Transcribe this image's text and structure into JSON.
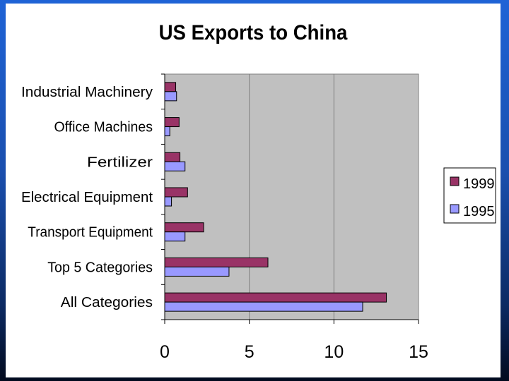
{
  "slide": {
    "title": "US Exports to China"
  },
  "colors": {
    "plot_background": "#c0c0c0",
    "series_1999": "#993366",
    "series_1995": "#9999ff",
    "background_top": "#1f63d6",
    "background_bottom": "#020a1e"
  },
  "chart_data": {
    "type": "bar",
    "orientation": "horizontal",
    "title": "US Exports to China",
    "xlabel": "",
    "ylabel": "",
    "xlim": [
      0,
      15
    ],
    "xticks": [
      "0",
      "5",
      "10",
      "15"
    ],
    "categories": [
      "Industrial Machinery",
      "Office Machines",
      "Fertilizer",
      "Electrical Equipment",
      "Transport Equipment",
      "Top 5 Categories",
      "All Categories"
    ],
    "series": [
      {
        "name": "1999",
        "color": "#993366",
        "values": [
          0.65,
          0.85,
          0.9,
          1.35,
          2.3,
          6.1,
          13.1
        ]
      },
      {
        "name": "1995",
        "color": "#9999ff",
        "values": [
          0.7,
          0.3,
          1.2,
          0.4,
          1.2,
          3.8,
          11.7
        ]
      }
    ],
    "grid": "vertical",
    "legend": "right"
  }
}
